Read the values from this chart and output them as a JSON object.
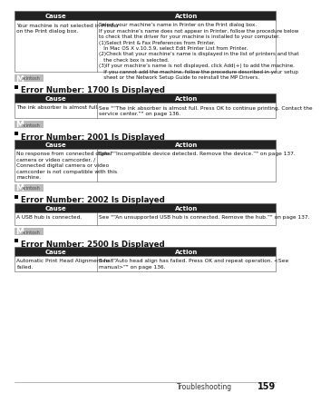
{
  "bg_color": "#ffffff",
  "header_bg": "#222222",
  "header_text_color": "#ffffff",
  "cell_bg": "#ffffff",
  "cell_text_color": "#111111",
  "border_color": "#555555",
  "section_title_color": "#111111",
  "footer_text": "Troubleshooting",
  "footer_page": "159",
  "mac_icon_bg": "#bbbbbb",
  "mac_icon_text": "#444444",
  "table0": {
    "cause": "Your machine is not selected in Printer\non the Print dialog box.",
    "action_lines": [
      "Select your machine’s name in Printer on the Print dialog box.",
      "If your machine’s name does not appear in Printer, follow the procedure below",
      "to check that the driver for your machine is installed to your computer.",
      "(1)Select Print & Fax Preferences from Printer.",
      "   In Mac OS X v.10.3.9, select Edit Printer List from Printer.",
      "(2)Check that your machine’s name is displayed in the list of printers and that",
      "   the check box is selected.",
      "(3)If your machine’s name is not displayed, click Add(+) to add the machine.",
      "   If you cannot add the machine, follow the procedure described in your setup",
      "   sheet or the Network Setup Guide to reinstall the MP Drivers."
    ]
  },
  "sections": [
    {
      "title": "Error Number: 1700 Is Displayed",
      "cause_lines": [
        "The ink absorber is almost full."
      ],
      "action_lines": [
        "See \"“The ink absorber is almost full. Press OK to continue printing. Contact the",
        "service center.”\" on page 136."
      ]
    },
    {
      "title": "Error Number: 2001 Is Displayed",
      "cause_lines": [
        "No response from connected digital",
        "camera or video camcorder. /",
        "Connected digital camera or video",
        "camcorder is not compatible with this",
        "machine."
      ],
      "action_lines": [
        "See \"“Incompatible device detected. Remove the device.”\" on page 137."
      ]
    },
    {
      "title": "Error Number: 2002 Is Displayed",
      "cause_lines": [
        "A USB hub is connected."
      ],
      "action_lines": [
        "See \"“An unsupported USB hub is connected. Remove the hub.”\" on page 137."
      ]
    },
    {
      "title": "Error Number: 2500 Is Displayed",
      "cause_lines": [
        "Automatic Print Head Alignment has",
        "failed."
      ],
      "action_lines": [
        "See \"“Auto head align has failed. Press OK and repeat operation. <See",
        "manual>”\" on page 136."
      ]
    }
  ]
}
